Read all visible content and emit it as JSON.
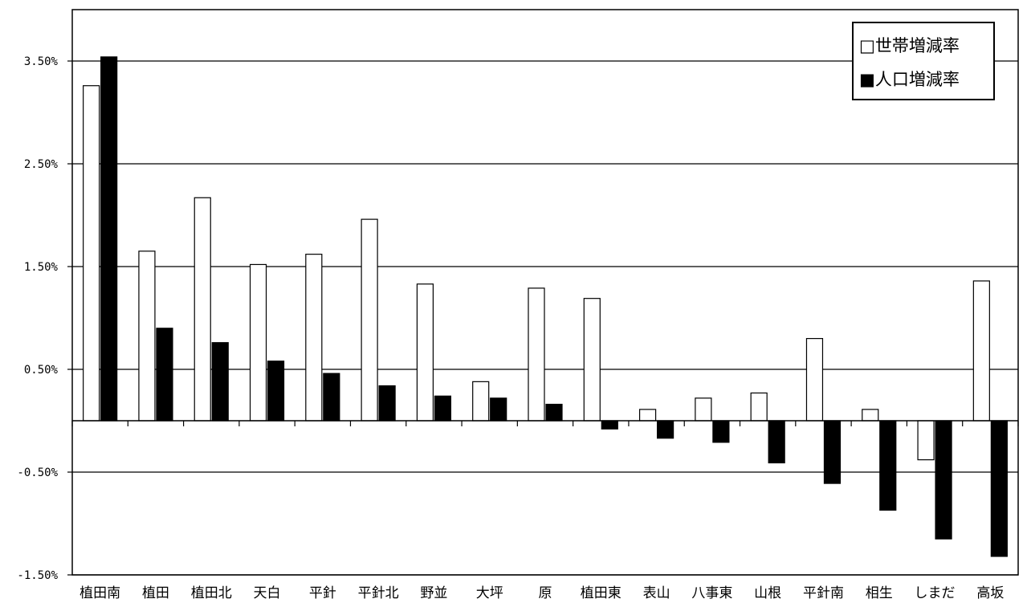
{
  "chart_data": {
    "type": "bar",
    "categories": [
      "植田南",
      "植田",
      "植田北",
      "天白",
      "平針",
      "平針北",
      "野並",
      "大坪",
      "原",
      "植田東",
      "表山",
      "八事東",
      "山根",
      "平針南",
      "相生",
      "しまだ",
      "高坂"
    ],
    "series": [
      {
        "name": "□世帯増減率",
        "color": "#ffffff",
        "values": [
          3.26,
          1.65,
          2.17,
          1.52,
          1.62,
          1.96,
          1.33,
          0.38,
          1.29,
          1.19,
          0.11,
          0.22,
          0.27,
          0.8,
          0.11,
          -0.38,
          1.36
        ]
      },
      {
        "name": "■人口増減率",
        "color": "#000000",
        "values": [
          3.54,
          0.9,
          0.76,
          0.58,
          0.46,
          0.34,
          0.24,
          0.22,
          0.16,
          -0.08,
          -0.17,
          -0.21,
          -0.41,
          -0.61,
          -0.87,
          -1.15,
          -1.32
        ]
      }
    ],
    "ytick_labels": [
      "3.50%",
      "2.50%",
      "1.50%",
      "0.50%",
      "-0.50%",
      "-1.50%"
    ],
    "ytick_values": [
      3.5,
      2.5,
      1.5,
      0.5,
      -0.5,
      -1.5
    ],
    "ylim": [
      -1.5,
      4.0
    ],
    "grid": true,
    "legend_position": "top-right",
    "xlabel": "",
    "ylabel": "",
    "title": ""
  }
}
